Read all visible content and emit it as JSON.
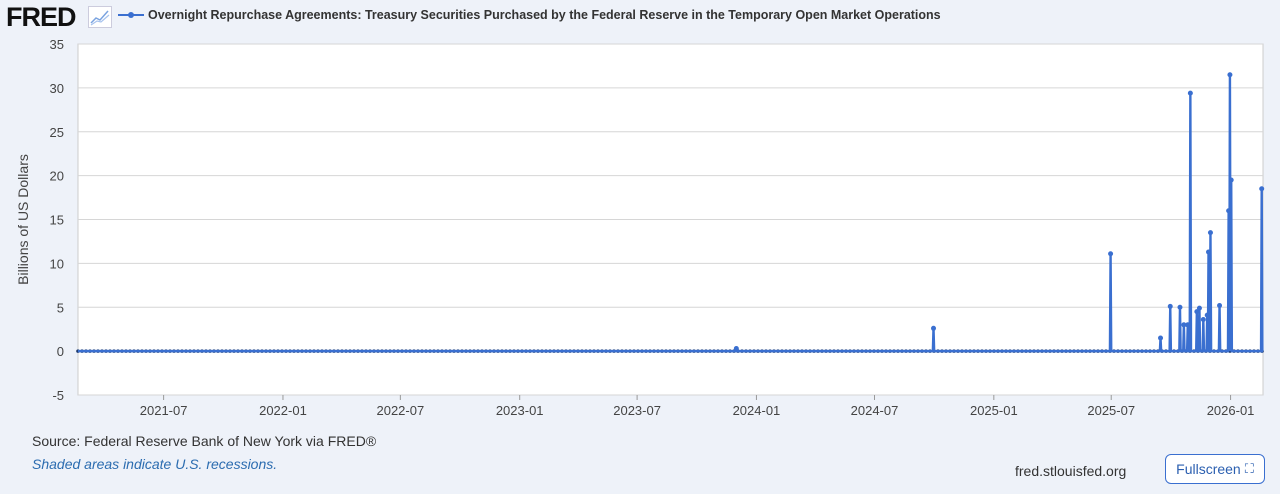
{
  "header": {
    "logo": "FRED",
    "logo_icon": "chart-line-icon",
    "series_title": "Overnight Repurchase Agreements: Treasury Securities Purchased by the Federal Reserve in the Temporary Open Market Operations"
  },
  "footer": {
    "source": "Source: Federal Reserve Bank of New York via FRED®",
    "recessions": "Shaded areas indicate U.S. recessions.",
    "site": "fred.stlouisfed.org",
    "fullscreen": "Fullscreen",
    "fullscreen_icon": "expand-icon"
  },
  "chart_data": {
    "type": "line",
    "title": "Overnight Repurchase Agreements: Treasury Securities Purchased by the Federal Reserve in the Temporary Open Market Operations",
    "ylabel": "Billions of US Dollars",
    "xlabel": "",
    "ylim": [
      -5,
      35
    ],
    "yticks": [
      -5,
      0,
      5,
      10,
      15,
      20,
      25,
      30,
      35
    ],
    "xlim": [
      "2021-02-19",
      "2026-02-20"
    ],
    "xticks": [
      "2021-07",
      "2022-01",
      "2022-07",
      "2023-01",
      "2023-07",
      "2024-01",
      "2024-07",
      "2025-01",
      "2025-07",
      "2026-01"
    ],
    "grid": true,
    "color": "#3a6fd0",
    "baseline_value": 0,
    "nonzero_points": [
      [
        "2023-12-01",
        0.3
      ],
      [
        "2024-09-30",
        2.6
      ],
      [
        "2025-06-30",
        11.1
      ],
      [
        "2025-09-15",
        1.5
      ],
      [
        "2025-09-30",
        5.1
      ],
      [
        "2025-10-15",
        5.0
      ],
      [
        "2025-10-21",
        3.0
      ],
      [
        "2025-10-27",
        3.0
      ],
      [
        "2025-10-31",
        29.4
      ],
      [
        "2025-11-10",
        4.5
      ],
      [
        "2025-11-14",
        4.9
      ],
      [
        "2025-11-20",
        3.6
      ],
      [
        "2025-11-26",
        4.1
      ],
      [
        "2025-11-28",
        11.3
      ],
      [
        "2025-12-01",
        13.5
      ],
      [
        "2025-12-15",
        5.2
      ],
      [
        "2025-12-29",
        16.0
      ],
      [
        "2025-12-31",
        31.5
      ],
      [
        "2026-01-02",
        19.5
      ],
      [
        "2026-02-18",
        18.5
      ]
    ]
  }
}
